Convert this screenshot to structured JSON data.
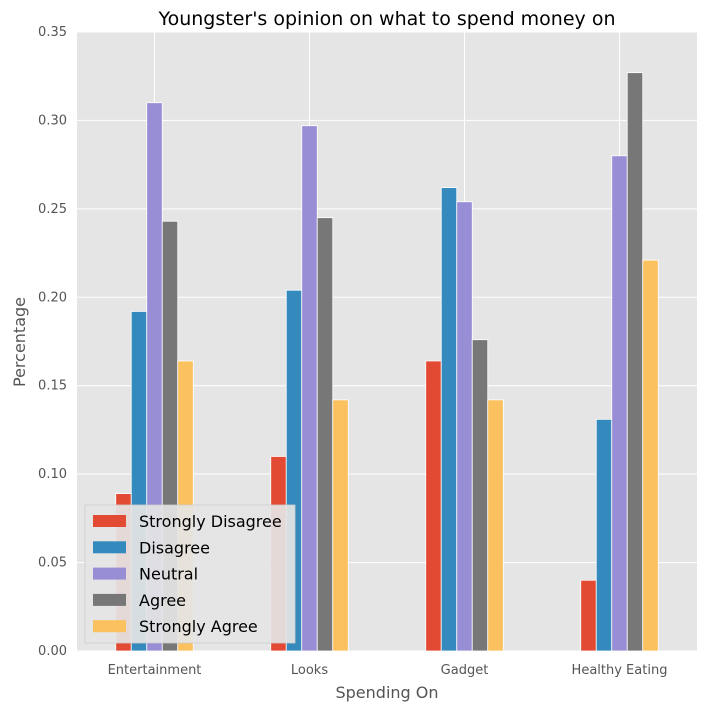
{
  "chart_data": {
    "type": "bar",
    "title": "Youngster's opinion on what to spend money on",
    "xlabel": "Spending On",
    "ylabel": "Percentage",
    "categories": [
      "Entertainment",
      "Looks",
      "Gadget",
      "Healthy Eating"
    ],
    "ylim": [
      0,
      0.35
    ],
    "yticks": [
      "0.00",
      "0.05",
      "0.10",
      "0.15",
      "0.20",
      "0.25",
      "0.30",
      "0.35"
    ],
    "grid": true,
    "legend_position": "bottom-left",
    "series": [
      {
        "name": "Strongly Disagree",
        "color": "#e24a33",
        "values": [
          0.089,
          0.11,
          0.164,
          0.04
        ]
      },
      {
        "name": "Disagree",
        "color": "#348abd",
        "values": [
          0.192,
          0.204,
          0.262,
          0.131
        ]
      },
      {
        "name": "Neutral",
        "color": "#988ed5",
        "values": [
          0.31,
          0.297,
          0.254,
          0.28
        ]
      },
      {
        "name": "Agree",
        "color": "#777777",
        "values": [
          0.243,
          0.245,
          0.176,
          0.327
        ]
      },
      {
        "name": "Strongly Agree",
        "color": "#fbc15e",
        "values": [
          0.164,
          0.142,
          0.142,
          0.221
        ]
      }
    ]
  }
}
